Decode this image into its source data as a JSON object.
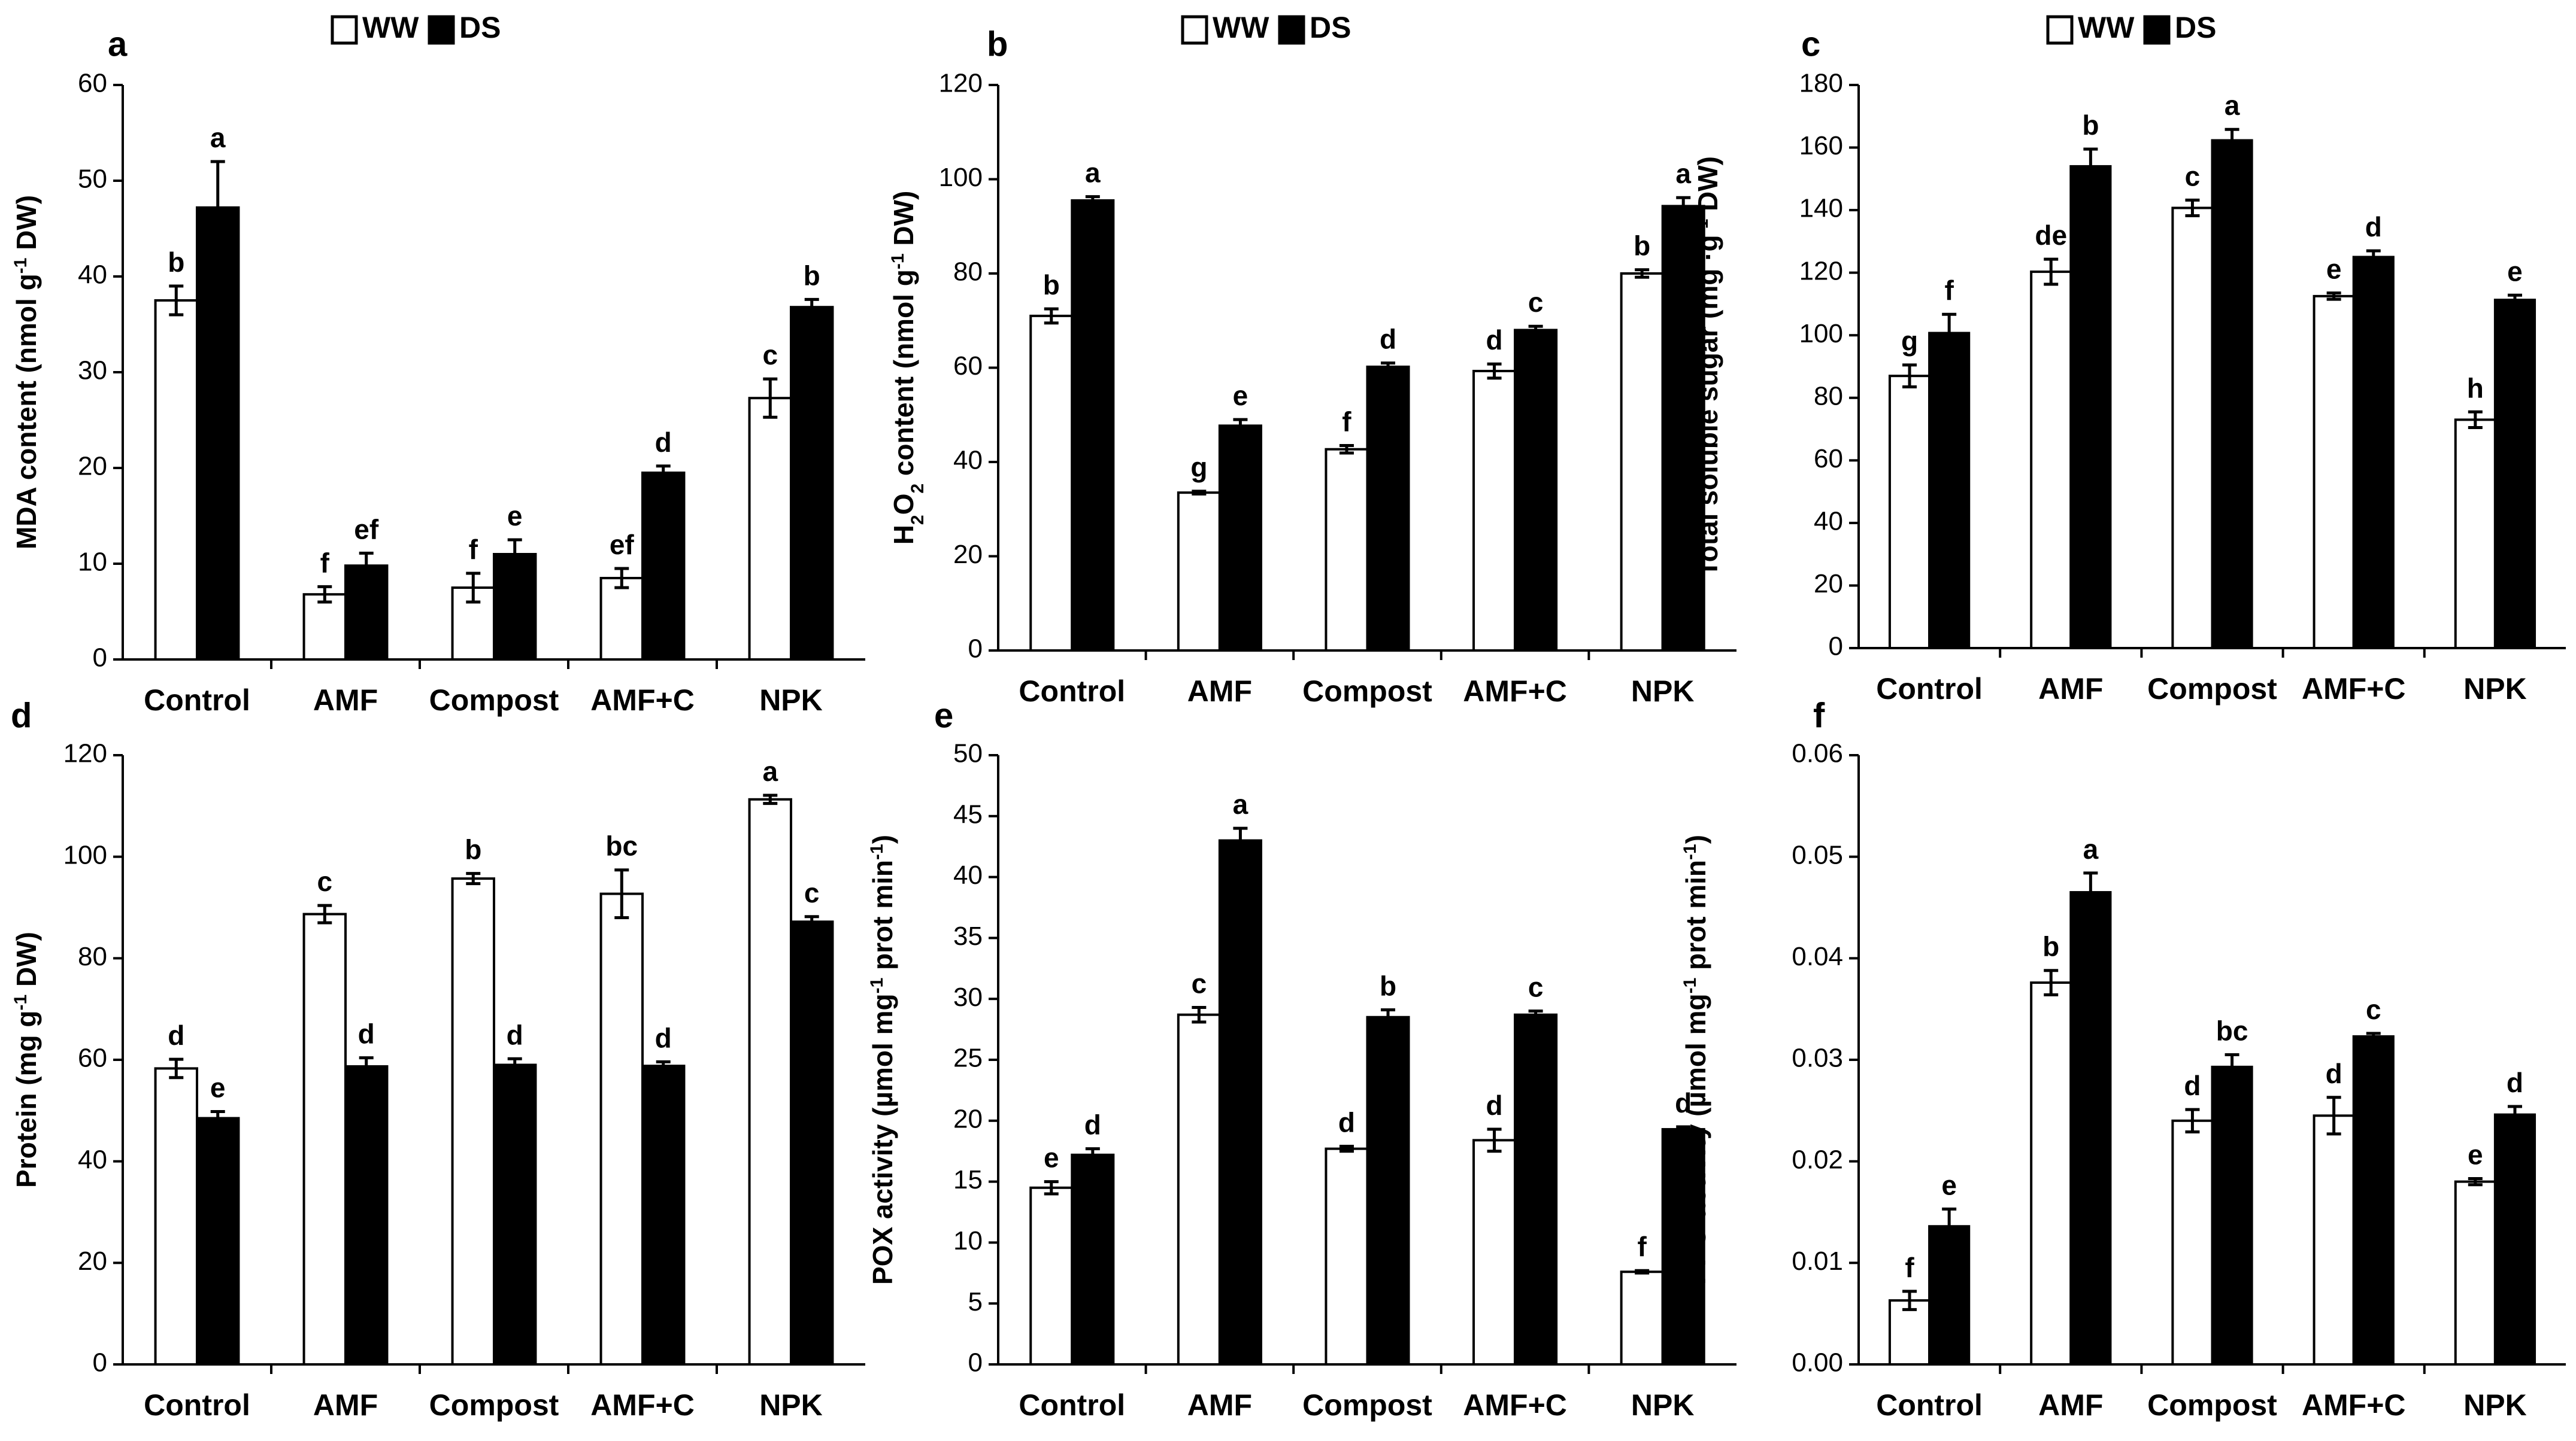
{
  "legend": {
    "ww_label": "WW",
    "ds_label": "DS"
  },
  "colors": {
    "ww": "#ffffff",
    "ds": "#000000",
    "stroke": "#000000"
  },
  "chart_data": [
    {
      "id": "a",
      "panel_label": "a",
      "type": "bar",
      "categories": [
        "Control",
        "AMF",
        "Compost",
        "AMF+C",
        "NPK"
      ],
      "ylabel_parts": [
        [
          "MDA content (nmol g",
          ""
        ],
        [
          "-1",
          "sup"
        ],
        [
          " DW)",
          ""
        ]
      ],
      "yticks": [
        "0",
        "10",
        "20",
        "30",
        "40",
        "50",
        "60"
      ],
      "ylim": [
        0,
        60
      ],
      "series": [
        {
          "name": "WW",
          "values": [
            37.5,
            6.8,
            7.5,
            8.5,
            27.3
          ],
          "errors": [
            1.5,
            0.8,
            1.5,
            1.0,
            2.0
          ],
          "letters": [
            "b",
            "f",
            "f",
            "ef",
            "c"
          ]
        },
        {
          "name": "DS",
          "values": [
            47.2,
            9.8,
            11.0,
            19.5,
            36.8
          ],
          "errors": [
            4.8,
            1.3,
            1.5,
            0.7,
            0.8
          ],
          "letters": [
            "a",
            "ef",
            "e",
            "d",
            "b"
          ]
        }
      ]
    },
    {
      "id": "b",
      "panel_label": "b",
      "type": "bar",
      "categories": [
        "Control",
        "AMF",
        "Compost",
        "AMF+C",
        "NPK"
      ],
      "ylabel_parts": [
        [
          "H",
          ""
        ],
        [
          "2",
          "sub"
        ],
        [
          "O",
          ""
        ],
        [
          "2",
          "sub"
        ],
        [
          " content  (nmol g",
          ""
        ],
        [
          "-1",
          "sup"
        ],
        [
          " DW)",
          ""
        ]
      ],
      "yticks": [
        "0",
        "20",
        "40",
        "60",
        "80",
        "100",
        "120"
      ],
      "ylim": [
        0,
        120
      ],
      "series": [
        {
          "name": "WW",
          "values": [
            71.0,
            33.5,
            42.7,
            59.3,
            80.0
          ],
          "errors": [
            1.5,
            0.3,
            0.8,
            1.5,
            0.8
          ],
          "letters": [
            "b",
            "g",
            "f",
            "d",
            "b"
          ]
        },
        {
          "name": "DS",
          "values": [
            95.5,
            47.7,
            60.2,
            68.0,
            94.3
          ],
          "errors": [
            0.8,
            1.3,
            0.8,
            0.8,
            1.8
          ],
          "letters": [
            "a",
            "e",
            "d",
            "c",
            "a"
          ]
        }
      ]
    },
    {
      "id": "c",
      "panel_label": "c",
      "type": "bar",
      "categories": [
        "Control",
        "AMF",
        "Compost",
        "AMF+C",
        "NPK"
      ],
      "ylabel_parts": [
        [
          "Total soluble sugar  (mg ·g",
          ""
        ],
        [
          "-1",
          "sup"
        ],
        [
          " DW)",
          ""
        ]
      ],
      "yticks": [
        "0",
        "20",
        "40",
        "60",
        "80",
        "100",
        "120",
        "140",
        "160",
        "180"
      ],
      "ylim": [
        0,
        180
      ],
      "series": [
        {
          "name": "WW",
          "values": [
            87.0,
            120.3,
            140.7,
            112.5,
            73.0
          ],
          "errors": [
            3.5,
            4.0,
            2.5,
            1.0,
            2.5
          ],
          "letters": [
            "g",
            "de",
            "c",
            "e",
            "h"
          ]
        },
        {
          "name": "DS",
          "values": [
            100.7,
            154.0,
            162.3,
            125.0,
            111.3
          ],
          "errors": [
            6.0,
            5.5,
            3.5,
            2.0,
            1.5
          ],
          "letters": [
            "f",
            "b",
            "a",
            "d",
            "e"
          ]
        }
      ]
    },
    {
      "id": "d",
      "panel_label": "d",
      "type": "bar",
      "categories": [
        "Control",
        "AMF",
        "Compost",
        "AMF+C",
        "NPK"
      ],
      "ylabel_parts": [
        [
          "Protein  (mg g",
          ""
        ],
        [
          "-1",
          "sup"
        ],
        [
          " DW)",
          ""
        ]
      ],
      "yticks": [
        "0",
        "20",
        "40",
        "60",
        "80",
        "100",
        "120"
      ],
      "ylim": [
        0,
        120
      ],
      "series": [
        {
          "name": "WW",
          "values": [
            58.3,
            88.7,
            95.7,
            92.7,
            111.3
          ],
          "errors": [
            1.8,
            1.7,
            1.0,
            4.7,
            0.8
          ],
          "letters": [
            "d",
            "c",
            "b",
            "bc",
            "a"
          ]
        },
        {
          "name": "DS",
          "values": [
            48.5,
            58.7,
            59.0,
            58.8,
            87.2
          ],
          "errors": [
            1.3,
            1.7,
            1.2,
            0.8,
            1.0
          ],
          "letters": [
            "e",
            "d",
            "d",
            "d",
            "c"
          ]
        }
      ]
    },
    {
      "id": "e",
      "panel_label": "e",
      "type": "bar",
      "categories": [
        "Control",
        "AMF",
        "Compost",
        "AMF+C",
        "NPK"
      ],
      "ylabel_parts": [
        [
          "POX activity (µmol mg",
          ""
        ],
        [
          "-1",
          "sup"
        ],
        [
          " prot min",
          ""
        ],
        [
          "-1",
          "sup"
        ],
        [
          ")",
          ""
        ]
      ],
      "yticks": [
        "0",
        "5",
        "10",
        "15",
        "20",
        "25",
        "30",
        "35",
        "40",
        "45",
        "50"
      ],
      "ylim": [
        0,
        50
      ],
      "series": [
        {
          "name": "WW",
          "values": [
            14.5,
            28.7,
            17.7,
            18.4,
            7.6
          ],
          "errors": [
            0.5,
            0.6,
            0.2,
            0.9,
            0.1
          ],
          "letters": [
            "e",
            "c",
            "d",
            "d",
            "f"
          ]
        },
        {
          "name": "DS",
          "values": [
            17.2,
            43.0,
            28.5,
            28.7,
            19.3
          ],
          "errors": [
            0.5,
            1.0,
            0.6,
            0.3,
            0.2
          ],
          "letters": [
            "d",
            "a",
            "b",
            "c",
            "d"
          ]
        }
      ]
    },
    {
      "id": "f",
      "panel_label": "f",
      "type": "bar",
      "categories": [
        "Control",
        "AMF",
        "Compost",
        "AMF+C",
        "NPK"
      ],
      "ylabel_parts": [
        [
          "PPO activity (µmol mg",
          ""
        ],
        [
          "-1",
          "sup"
        ],
        [
          " prot min",
          ""
        ],
        [
          "-1",
          "sup"
        ],
        [
          ")",
          ""
        ]
      ],
      "yticks": [
        "0.00",
        "0.01",
        "0.02",
        "0.03",
        "0.04",
        "0.05",
        "0.06"
      ],
      "ylim": [
        0,
        0.06
      ],
      "series": [
        {
          "name": "WW",
          "values": [
            0.0063,
            0.0376,
            0.024,
            0.0245,
            0.018
          ],
          "errors": [
            0.0009,
            0.0012,
            0.0011,
            0.0018,
            0.0003
          ],
          "letters": [
            "f",
            "b",
            "d",
            "d",
            "e"
          ]
        },
        {
          "name": "DS",
          "values": [
            0.0136,
            0.0465,
            0.0293,
            0.0323,
            0.0246
          ],
          "errors": [
            0.0017,
            0.0019,
            0.0012,
            0.0003,
            0.0008
          ],
          "letters": [
            "e",
            "a",
            "bc",
            "c",
            "d"
          ]
        }
      ]
    }
  ]
}
